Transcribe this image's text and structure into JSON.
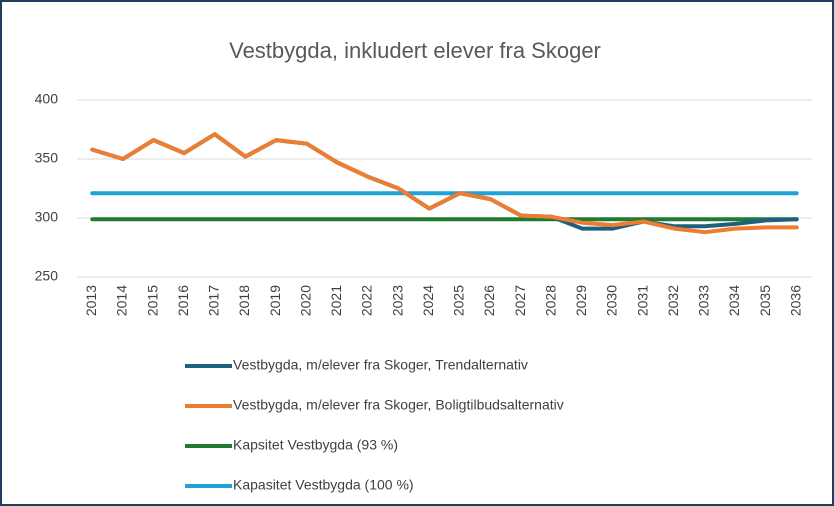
{
  "chart_data": {
    "type": "line",
    "title": "Vestbygda, inkludert elever fra Skoger",
    "categories": [
      "2013",
      "2014",
      "2015",
      "2016",
      "2017",
      "2018",
      "2019",
      "2020",
      "2021",
      "2022",
      "2023",
      "2024",
      "2025",
      "2026",
      "2027",
      "2028",
      "2029",
      "2030",
      "2031",
      "2032",
      "2033",
      "2034",
      "2035",
      "2036"
    ],
    "series": [
      {
        "name": "Vestbygda, m/elever fra Skoger, Trendalternativ",
        "color": "#215f7e",
        "values": [
          358,
          350,
          366,
          355,
          371,
          352,
          366,
          363,
          347,
          335,
          325,
          308,
          321,
          316,
          302,
          301,
          291,
          291,
          297,
          293,
          293,
          295,
          298,
          299
        ]
      },
      {
        "name": "Vestbygda, m/elever fra Skoger, Boligtilbudsalternativ",
        "color": "#ed7d31",
        "values": [
          358,
          350,
          366,
          355,
          371,
          352,
          366,
          363,
          347,
          335,
          325,
          308,
          321,
          316,
          302,
          301,
          296,
          294,
          297,
          291,
          288,
          291,
          292,
          292
        ]
      },
      {
        "name": "Kapsitet Vestbygda (93 %)",
        "color": "#1e7b2f",
        "values": [
          299,
          299,
          299,
          299,
          299,
          299,
          299,
          299,
          299,
          299,
          299,
          299,
          299,
          299,
          299,
          299,
          299,
          299,
          299,
          299,
          299,
          299,
          299,
          299
        ]
      },
      {
        "name": "Kapasitet Vestbygda (100 %)",
        "color": "#1fa2d8",
        "values": [
          321,
          321,
          321,
          321,
          321,
          321,
          321,
          321,
          321,
          321,
          321,
          321,
          321,
          321,
          321,
          321,
          321,
          321,
          321,
          321,
          321,
          321,
          321,
          321
        ]
      }
    ],
    "ylim": [
      250,
      400
    ],
    "yticks": [
      250,
      300,
      350,
      400
    ],
    "grid": true
  }
}
